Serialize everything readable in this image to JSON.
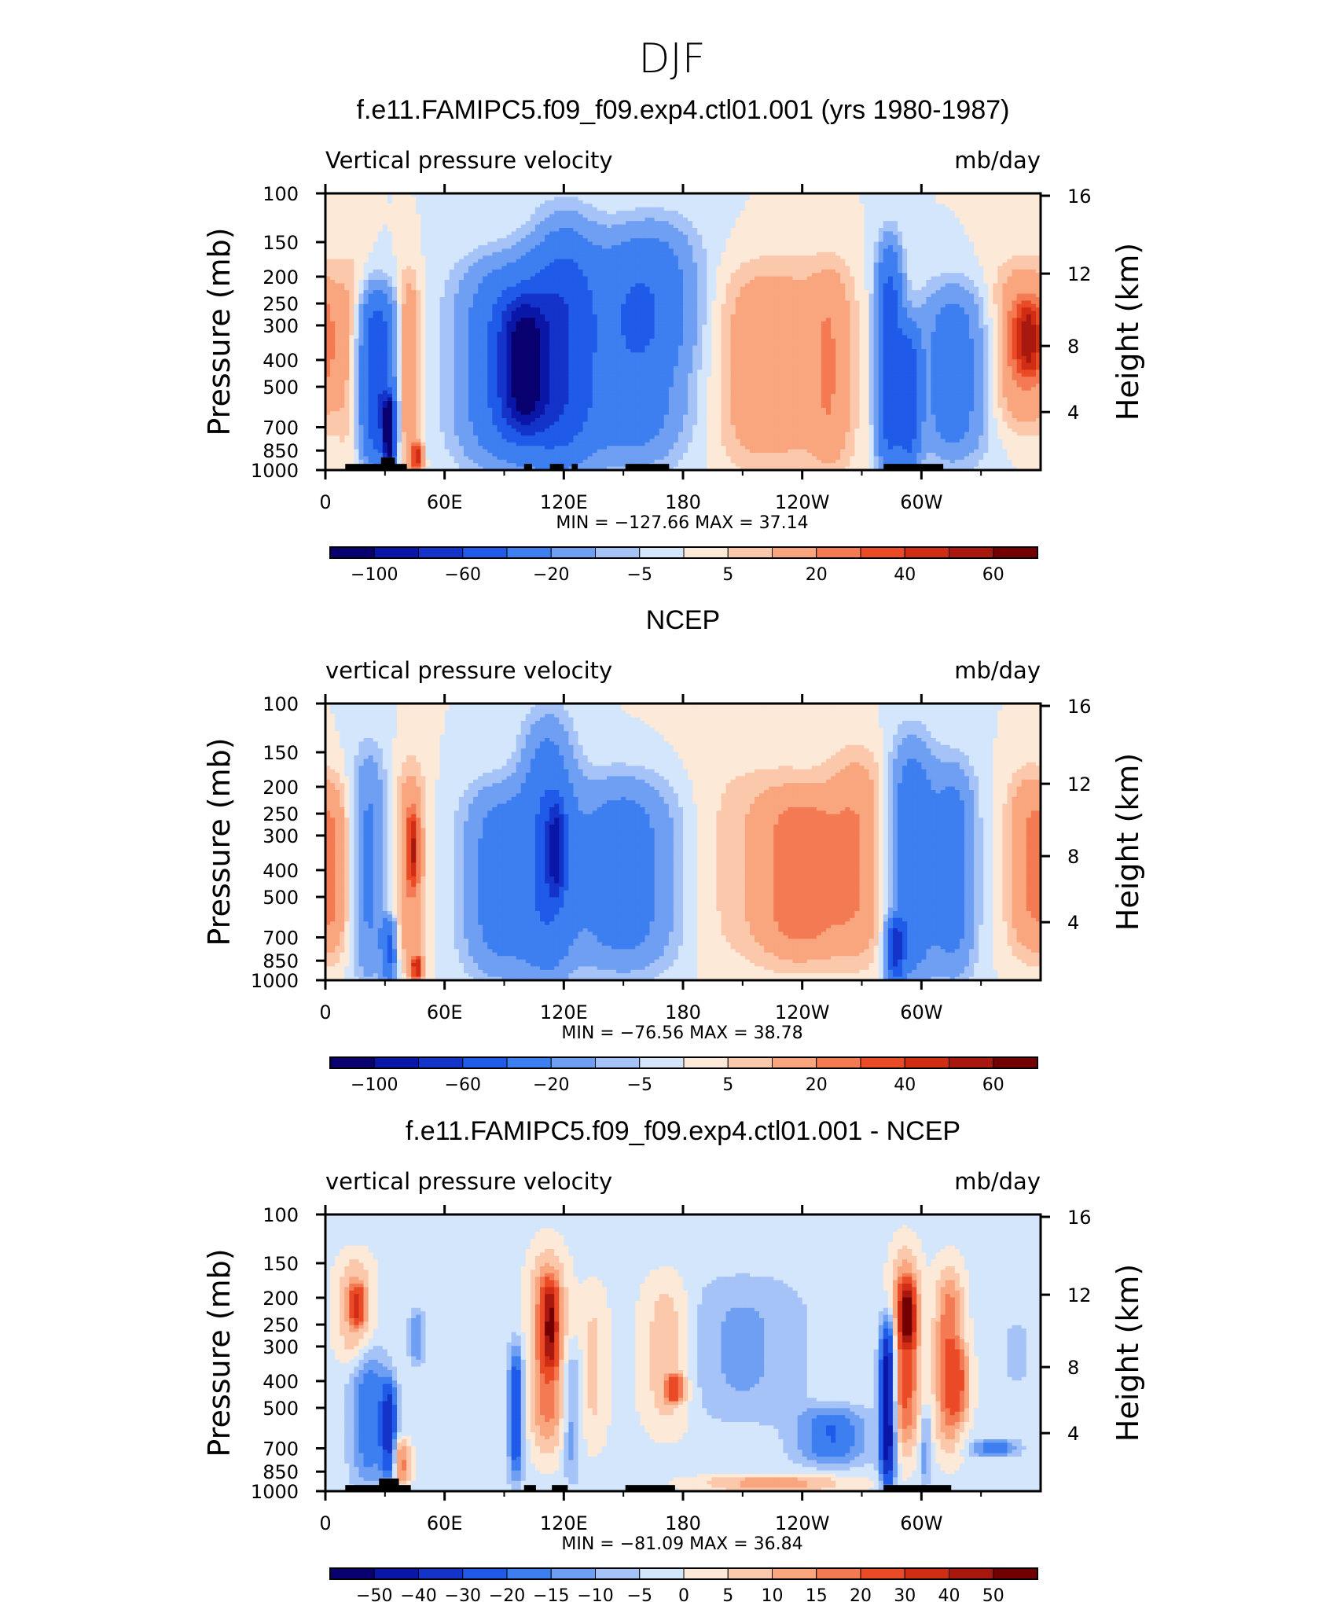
{
  "page": {
    "season_title": "DJF"
  },
  "colors": {
    "frame": "#000000",
    "land": "#000000",
    "palette": [
      "#08006e",
      "#0a16a8",
      "#1433c8",
      "#1f5ae8",
      "#3d7ef0",
      "#6f9ff2",
      "#a5c3f7",
      "#d4e6fb",
      "#fde9d8",
      "#fcc8ab",
      "#f9a57e",
      "#f37a52",
      "#ea4b26",
      "#d02d14",
      "#a8180e",
      "#730000"
    ]
  },
  "chart_data": [
    {
      "type": "heatmap",
      "id": "p1",
      "title": "f.e11.FAMIPC5.f09_f09.exp4.ctl01.001 (yrs 1980-1987)",
      "left_label": "Vertical pressure velocity",
      "right_label": "mb/day",
      "xlabel": "",
      "ylabel": "Pressure (mb)",
      "y2label": "Height (km)",
      "xlim": [
        0,
        360
      ],
      "ylim": [
        1000,
        100
      ],
      "y_scale": "log",
      "xticks": [
        {
          "v": 0,
          "t": "0"
        },
        {
          "v": 60,
          "t": "60E"
        },
        {
          "v": 120,
          "t": "120E"
        },
        {
          "v": 180,
          "t": "180"
        },
        {
          "v": 240,
          "t": "120W"
        },
        {
          "v": 300,
          "t": "60W"
        }
      ],
      "yticks": [
        {
          "v": 100,
          "t": "100"
        },
        {
          "v": 150,
          "t": "150"
        },
        {
          "v": 200,
          "t": "200"
        },
        {
          "v": 250,
          "t": "250"
        },
        {
          "v": 300,
          "t": "300"
        },
        {
          "v": 400,
          "t": "400"
        },
        {
          "v": 500,
          "t": "500"
        },
        {
          "v": 700,
          "t": "700"
        },
        {
          "v": 850,
          "t": "850"
        },
        {
          "v": 1000,
          "t": "1000"
        }
      ],
      "y2ticks": [
        {
          "p": 102,
          "t": "16"
        },
        {
          "p": 195,
          "t": "12"
        },
        {
          "p": 356,
          "t": "8"
        },
        {
          "p": 617,
          "t": "4"
        }
      ],
      "stats": "MIN = −127.66   MAX =   37.14",
      "min": -127.66,
      "max": 37.14,
      "colorbar_labels": [
        "−100",
        "−60",
        "−20",
        "−5",
        "5",
        "20",
        "40",
        "60"
      ],
      "levels": [
        -100,
        -80,
        -60,
        -40,
        -20,
        -10,
        -5,
        0,
        5,
        10,
        20,
        30,
        40,
        50,
        60
      ],
      "background": 0,
      "features": [
        {
          "lon": 13,
          "lon_w": 8,
          "p_top": 170,
          "p_bot": 1000,
          "value": 9
        },
        {
          "lon": 26,
          "lon_w": 10,
          "p_top": 230,
          "p_bot": 950,
          "value": -60
        },
        {
          "lon": 32,
          "lon_w": 3,
          "p_top": 550,
          "p_bot": 950,
          "value": -110
        },
        {
          "lon": 42,
          "lon_w": 6,
          "p_top": 200,
          "p_bot": 1000,
          "value": 22
        },
        {
          "lon": 46,
          "lon_w": 3,
          "p_top": 800,
          "p_bot": 1000,
          "value": 40
        },
        {
          "lon": 95,
          "lon_w": 28,
          "p_top": 180,
          "p_bot": 950,
          "value": -45
        },
        {
          "lon": 100,
          "lon_w": 12,
          "p_top": 250,
          "p_bot": 700,
          "value": -70
        },
        {
          "lon": 120,
          "lon_w": 18,
          "p_top": 130,
          "p_bot": 950,
          "value": -40
        },
        {
          "lon": 155,
          "lon_w": 28,
          "p_top": 150,
          "p_bot": 900,
          "value": -35
        },
        {
          "lon": 168,
          "lon_w": 22,
          "p_top": 120,
          "p_bot": 400,
          "value": -12
        },
        {
          "lon": 210,
          "lon_w": 14,
          "p_top": 200,
          "p_bot": 1000,
          "value": 4
        },
        {
          "lon": 228,
          "lon_w": 30,
          "p_top": 180,
          "p_bot": 950,
          "value": 17
        },
        {
          "lon": 255,
          "lon_w": 12,
          "p_top": 180,
          "p_bot": 1000,
          "value": 14
        },
        {
          "lon": 284,
          "lon_w": 7,
          "p_top": 160,
          "p_bot": 1000,
          "value": -55
        },
        {
          "lon": 294,
          "lon_w": 6,
          "p_top": 300,
          "p_bot": 1000,
          "value": -45
        },
        {
          "lon": 316,
          "lon_w": 18,
          "p_top": 220,
          "p_bot": 900,
          "value": -30
        },
        {
          "lon": 352,
          "lon_w": 18,
          "p_top": 180,
          "p_bot": 700,
          "value": 21
        },
        {
          "lon": 354,
          "lon_w": 8,
          "p_top": 250,
          "p_bot": 450,
          "value": 35
        }
      ],
      "land": [
        {
          "lon_start": 10,
          "lon_end": 41,
          "p_top": 950
        },
        {
          "lon_start": 28,
          "lon_end": 35,
          "p_top": 900
        },
        {
          "lon_start": 100,
          "lon_end": 104,
          "p_top": 950
        },
        {
          "lon_start": 113,
          "lon_end": 120,
          "p_top": 950
        },
        {
          "lon_start": 124,
          "lon_end": 127,
          "p_top": 950
        },
        {
          "lon_start": 151,
          "lon_end": 173,
          "p_top": 950
        },
        {
          "lon_start": 281,
          "lon_end": 311,
          "p_top": 950
        }
      ]
    },
    {
      "type": "heatmap",
      "id": "p2",
      "title": "NCEP",
      "left_label": "vertical pressure velocity",
      "right_label": "mb/day",
      "xlabel": "",
      "ylabel": "Pressure (mb)",
      "y2label": "Height (km)",
      "xlim": [
        0,
        360
      ],
      "ylim": [
        1000,
        100
      ],
      "y_scale": "log",
      "xticks": [
        {
          "v": 0,
          "t": "0"
        },
        {
          "v": 60,
          "t": "60E"
        },
        {
          "v": 120,
          "t": "120E"
        },
        {
          "v": 180,
          "t": "180"
        },
        {
          "v": 240,
          "t": "120W"
        },
        {
          "v": 300,
          "t": "60W"
        }
      ],
      "yticks": [
        {
          "v": 100,
          "t": "100"
        },
        {
          "v": 150,
          "t": "150"
        },
        {
          "v": 200,
          "t": "200"
        },
        {
          "v": 250,
          "t": "250"
        },
        {
          "v": 300,
          "t": "300"
        },
        {
          "v": 400,
          "t": "400"
        },
        {
          "v": 500,
          "t": "500"
        },
        {
          "v": 700,
          "t": "700"
        },
        {
          "v": 850,
          "t": "850"
        },
        {
          "v": 1000,
          "t": "1000"
        }
      ],
      "y2ticks": [
        {
          "p": 102,
          "t": "16"
        },
        {
          "p": 195,
          "t": "12"
        },
        {
          "p": 356,
          "t": "8"
        },
        {
          "p": 617,
          "t": "4"
        }
      ],
      "stats": "MIN = −76.56   MAX =   38.78",
      "min": -76.56,
      "max": 38.78,
      "colorbar_labels": [
        "−100",
        "−60",
        "−20",
        "−5",
        "5",
        "20",
        "40",
        "60"
      ],
      "levels": [
        -100,
        -80,
        -60,
        -40,
        -20,
        -10,
        -5,
        0,
        5,
        10,
        20,
        30,
        40,
        50,
        60
      ],
      "background": 0,
      "features": [
        {
          "lon": 5,
          "lon_w": 8,
          "p_top": 200,
          "p_bot": 800,
          "value": 14
        },
        {
          "lon": 22,
          "lon_w": 9,
          "p_top": 150,
          "p_bot": 1000,
          "value": -22
        },
        {
          "lon": 32,
          "lon_w": 4,
          "p_top": 600,
          "p_bot": 1000,
          "value": -40
        },
        {
          "lon": 43,
          "lon_w": 8,
          "p_top": 170,
          "p_bot": 900,
          "value": 20
        },
        {
          "lon": 44,
          "lon_w": 3,
          "p_top": 250,
          "p_bot": 450,
          "value": 32
        },
        {
          "lon": 46,
          "lon_w": 3,
          "p_top": 820,
          "p_bot": 1000,
          "value": 45
        },
        {
          "lon": 88,
          "lon_w": 20,
          "p_top": 200,
          "p_bot": 950,
          "value": -28
        },
        {
          "lon": 112,
          "lon_w": 14,
          "p_top": 120,
          "p_bot": 950,
          "value": -35
        },
        {
          "lon": 116,
          "lon_w": 5,
          "p_top": 230,
          "p_bot": 500,
          "value": -50
        },
        {
          "lon": 150,
          "lon_w": 30,
          "p_top": 190,
          "p_bot": 900,
          "value": -30
        },
        {
          "lon": 218,
          "lon_w": 45,
          "p_top": 160,
          "p_bot": 900,
          "value": 8
        },
        {
          "lon": 240,
          "lon_w": 22,
          "p_top": 210,
          "p_bot": 820,
          "value": 22
        },
        {
          "lon": 268,
          "lon_w": 16,
          "p_top": 150,
          "p_bot": 850,
          "value": 16
        },
        {
          "lon": 295,
          "lon_w": 12,
          "p_top": 140,
          "p_bot": 1000,
          "value": -35
        },
        {
          "lon": 287,
          "lon_w": 5,
          "p_top": 600,
          "p_bot": 1000,
          "value": -55
        },
        {
          "lon": 316,
          "lon_w": 12,
          "p_top": 170,
          "p_bot": 950,
          "value": -28
        },
        {
          "lon": 354,
          "lon_w": 12,
          "p_top": 180,
          "p_bot": 800,
          "value": 20
        }
      ],
      "land": []
    },
    {
      "type": "heatmap",
      "id": "p3",
      "title": "f.e11.FAMIPC5.f09_f09.exp4.ctl01.001 - NCEP",
      "left_label": "vertical pressure velocity",
      "right_label": "mb/day",
      "xlabel": "",
      "ylabel": "Pressure (mb)",
      "y2label": "Height (km)",
      "xlim": [
        0,
        360
      ],
      "ylim": [
        1000,
        100
      ],
      "y_scale": "log",
      "xticks": [
        {
          "v": 0,
          "t": "0"
        },
        {
          "v": 60,
          "t": "60E"
        },
        {
          "v": 120,
          "t": "120E"
        },
        {
          "v": 180,
          "t": "180"
        },
        {
          "v": 240,
          "t": "120W"
        },
        {
          "v": 300,
          "t": "60W"
        }
      ],
      "yticks": [
        {
          "v": 100,
          "t": "100"
        },
        {
          "v": 150,
          "t": "150"
        },
        {
          "v": 200,
          "t": "200"
        },
        {
          "v": 250,
          "t": "250"
        },
        {
          "v": 300,
          "t": "300"
        },
        {
          "v": 400,
          "t": "400"
        },
        {
          "v": 500,
          "t": "500"
        },
        {
          "v": 700,
          "t": "700"
        },
        {
          "v": 850,
          "t": "850"
        },
        {
          "v": 1000,
          "t": "1000"
        }
      ],
      "y2ticks": [
        {
          "p": 102,
          "t": "16"
        },
        {
          "p": 195,
          "t": "12"
        },
        {
          "p": 356,
          "t": "8"
        },
        {
          "p": 617,
          "t": "4"
        }
      ],
      "stats": "MIN = −81.09   MAX =   36.84",
      "min": -81.09,
      "max": 36.84,
      "colorbar_labels": [
        "−50",
        "−40",
        "−30",
        "−20",
        "−15",
        "−10",
        "−5",
        "0",
        "5",
        "10",
        "15",
        "20",
        "30",
        "40",
        "50"
      ],
      "levels": [
        -50,
        -40,
        -30,
        -20,
        -15,
        -10,
        -5,
        0,
        5,
        10,
        15,
        20,
        30,
        40,
        50
      ],
      "background": -2,
      "features": [
        {
          "lon": 15,
          "lon_w": 10,
          "p_top": 140,
          "p_bot": 350,
          "value": 13
        },
        {
          "lon": 16,
          "lon_w": 4,
          "p_top": 180,
          "p_bot": 250,
          "value": 22
        },
        {
          "lon": 22,
          "lon_w": 10,
          "p_top": 300,
          "p_bot": 950,
          "value": -17
        },
        {
          "lon": 32,
          "lon_w": 4,
          "p_top": 400,
          "p_bot": 900,
          "value": -30
        },
        {
          "lon": 38,
          "lon_w": 5,
          "p_top": 650,
          "p_bot": 950,
          "value": 20
        },
        {
          "lon": 46,
          "lon_w": 4,
          "p_top": 220,
          "p_bot": 350,
          "value": -12
        },
        {
          "lon": 96,
          "lon_w": 4,
          "p_top": 300,
          "p_bot": 900,
          "value": -25
        },
        {
          "lon": 112,
          "lon_w": 10,
          "p_top": 140,
          "p_bot": 700,
          "value": 22
        },
        {
          "lon": 113,
          "lon_w": 4,
          "p_top": 180,
          "p_bot": 350,
          "value": 35
        },
        {
          "lon": 124,
          "lon_w": 5,
          "p_top": 300,
          "p_bot": 900,
          "value": -12
        },
        {
          "lon": 135,
          "lon_w": 8,
          "p_top": 180,
          "p_bot": 700,
          "value": 8
        },
        {
          "lon": 172,
          "lon_w": 14,
          "p_top": 170,
          "p_bot": 600,
          "value": 12
        },
        {
          "lon": 176,
          "lon_w": 5,
          "p_top": 380,
          "p_bot": 480,
          "value": 22
        },
        {
          "lon": 210,
          "lon_w": 35,
          "p_top": 170,
          "p_bot": 550,
          "value": -9
        },
        {
          "lon": 255,
          "lon_w": 20,
          "p_top": 500,
          "p_bot": 800,
          "value": -18
        },
        {
          "lon": 225,
          "lon_w": 40,
          "p_top": 880,
          "p_bot": 1000,
          "value": 15
        },
        {
          "lon": 283,
          "lon_w": 4,
          "p_top": 250,
          "p_bot": 950,
          "value": -50
        },
        {
          "lon": 292,
          "lon_w": 8,
          "p_top": 140,
          "p_bot": 700,
          "value": 25
        },
        {
          "lon": 293,
          "lon_w": 4,
          "p_top": 180,
          "p_bot": 300,
          "value": 38
        },
        {
          "lon": 302,
          "lon_w": 3,
          "p_top": 500,
          "p_bot": 950,
          "value": -12
        },
        {
          "lon": 314,
          "lon_w": 8,
          "p_top": 160,
          "p_bot": 700,
          "value": 22
        },
        {
          "lon": 320,
          "lon_w": 6,
          "p_top": 300,
          "p_bot": 550,
          "value": 12
        },
        {
          "lon": 337,
          "lon_w": 12,
          "p_top": 650,
          "p_bot": 750,
          "value": -18
        },
        {
          "lon": 348,
          "lon_w": 6,
          "p_top": 250,
          "p_bot": 400,
          "value": -7
        }
      ],
      "land": [
        {
          "lon_start": 10,
          "lon_end": 43,
          "p_top": 950
        },
        {
          "lon_start": 27,
          "lon_end": 37,
          "p_top": 900
        },
        {
          "lon_start": 100,
          "lon_end": 106,
          "p_top": 950
        },
        {
          "lon_start": 114,
          "lon_end": 122,
          "p_top": 950
        },
        {
          "lon_start": 151,
          "lon_end": 176,
          "p_top": 950
        },
        {
          "lon_start": 281,
          "lon_end": 315,
          "p_top": 950
        }
      ]
    }
  ]
}
